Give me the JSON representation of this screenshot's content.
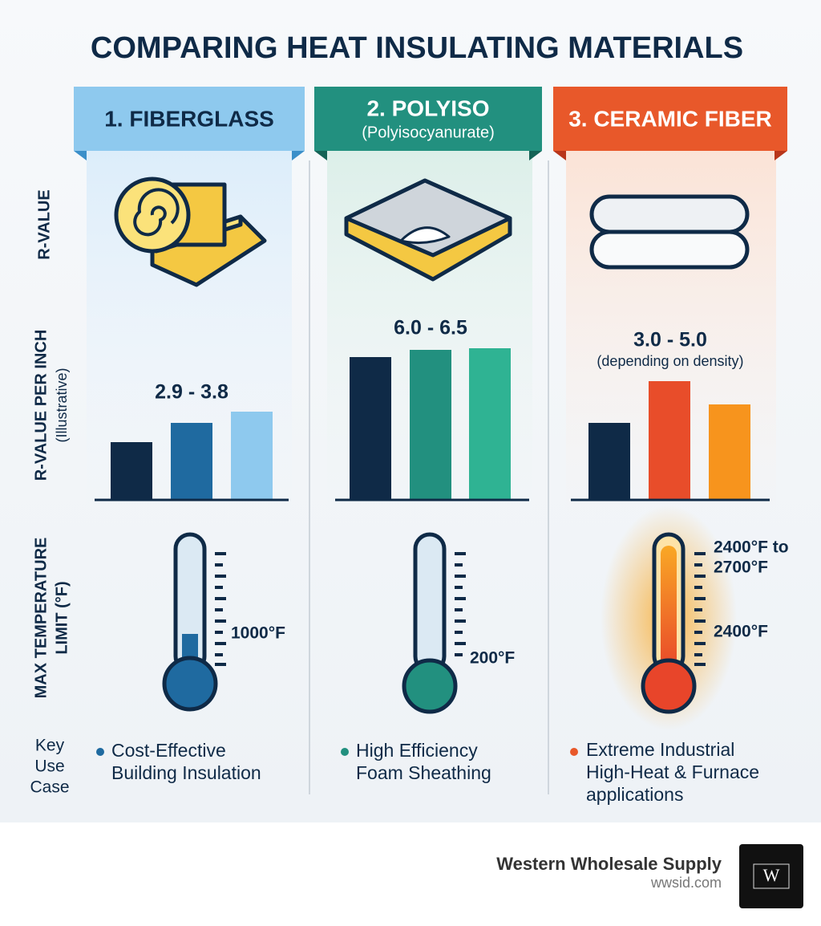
{
  "title": "COMPARING HEAT INSULATING MATERIALS",
  "row_labels": {
    "r_value": "R-VALUE",
    "r_value_per_inch": "R-VALUE PER INCH",
    "illustrative": "(Illustrative)",
    "max_temp": [
      "MAX TEMPERATURE",
      "LIMIT (°F)"
    ],
    "key_use": [
      "Key",
      "Use",
      "Case"
    ]
  },
  "materials": [
    {
      "header": "1. FIBERGLASS",
      "r_value": "2.9 - 3.8",
      "temp_labels": [
        "1000°F"
      ],
      "use_case": [
        "Cost-Effective",
        "Building Insulation"
      ]
    },
    {
      "header": "2. POLYISO",
      "subheader": "(Polyisocyanurate)",
      "r_value": "6.0 - 6.5",
      "temp_labels": [
        "200°F"
      ],
      "use_case": [
        "High Efficiency",
        "Foam Sheathing"
      ]
    },
    {
      "header": "3. CERAMIC FIBER",
      "r_value": "3.0 - 5.0",
      "r_value_note": "(depending on density)",
      "temp_labels": [
        "2400°F to",
        "2700°F",
        "2400°F"
      ],
      "use_case": [
        "Extreme Industrial",
        "High-Heat & Furnace",
        "applications"
      ]
    }
  ],
  "footer": {
    "company": "Western Wholesale Supply",
    "url": "wwsid.com",
    "logo": "W"
  }
}
